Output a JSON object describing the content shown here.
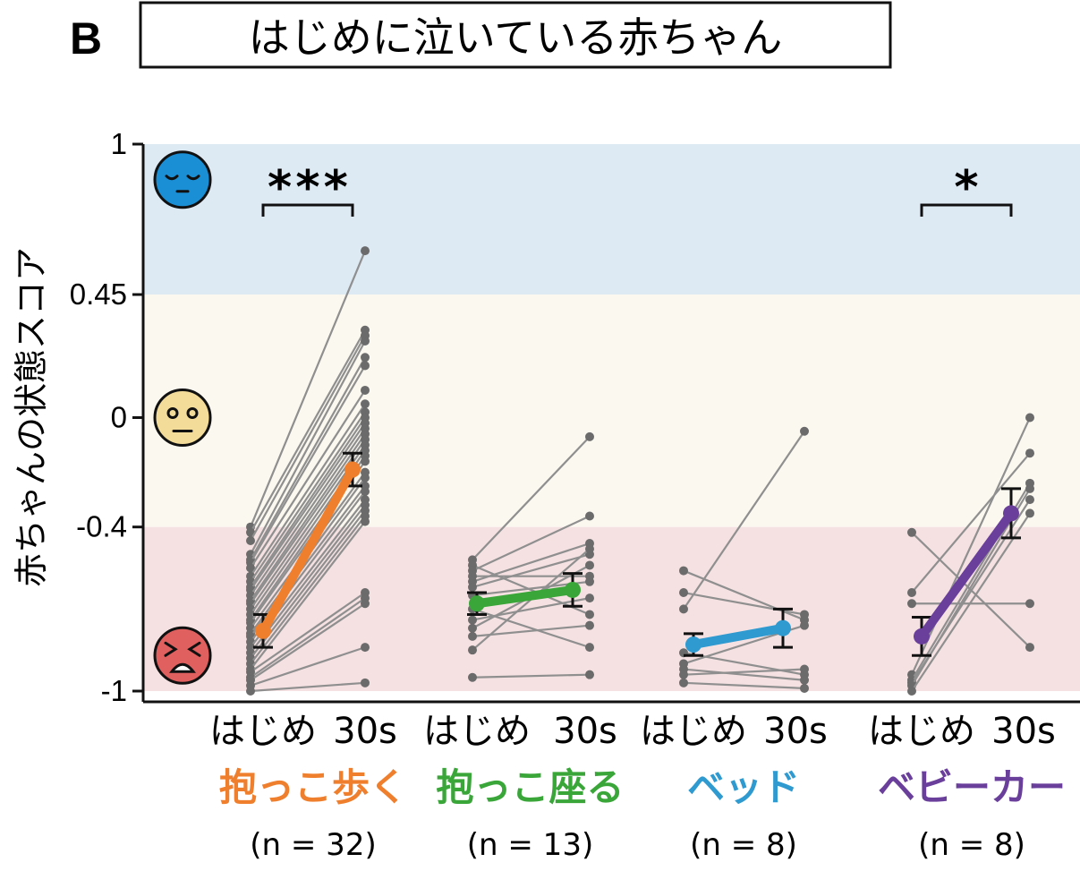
{
  "panel_label": "B",
  "colors": {
    "zone_calm": "#dde9f3",
    "zone_neutral": "#fbf8f0",
    "zone_crying": "#f5e1e2",
    "individual_line": "#8f8f8f",
    "individual_point": "#6b6b6b",
    "face_calm": "#1a8fd6",
    "face_neutral": "#f3dc9a",
    "face_crying": "#e0605f"
  },
  "faces": [
    {
      "name": "calm-face-icon",
      "score": 0.87,
      "color_key": "face_calm"
    },
    {
      "name": "neutral-face-icon",
      "score": 0.0,
      "color_key": "face_neutral"
    },
    {
      "name": "crying-face-icon",
      "score": -0.87,
      "color_key": "face_crying"
    }
  ],
  "chart_data": {
    "type": "line",
    "title": "はじめに泣いている赤ちゃん",
    "ylabel": "赤ちゃんの状態スコア",
    "ylim": [
      -1,
      1
    ],
    "yticks": [
      {
        "value": 1,
        "label": "1"
      },
      {
        "value": 0.45,
        "label": "0.45"
      },
      {
        "value": 0,
        "label": "0"
      },
      {
        "value": -0.4,
        "label": "-0.4"
      },
      {
        "value": -1,
        "label": "-1"
      }
    ],
    "zones": [
      {
        "from": 0.45,
        "to": 1,
        "state": "calm",
        "color_key": "zone_calm"
      },
      {
        "from": -0.4,
        "to": 0.45,
        "state": "neutral",
        "color_key": "zone_neutral"
      },
      {
        "from": -1,
        "to": -0.4,
        "state": "crying",
        "color_key": "zone_crying"
      }
    ],
    "condition_labels": [
      "はじめ",
      "30s"
    ],
    "groups": [
      {
        "name": "抱っこ歩く",
        "n_label": "(n = 32)",
        "color": "#ef7f2d",
        "mean": [
          -0.78,
          -0.19
        ],
        "sem": [
          0.06,
          0.06
        ],
        "significance": "***",
        "individuals": [
          [
            -0.4,
            0.61
          ],
          [
            -0.42,
            0.32
          ],
          [
            -0.45,
            0.3
          ],
          [
            -0.5,
            0.28
          ],
          [
            -0.52,
            0.22
          ],
          [
            -0.53,
            0.19
          ],
          [
            -0.55,
            0.1
          ],
          [
            -0.58,
            0.05
          ],
          [
            -0.6,
            0.02
          ],
          [
            -0.62,
            0.0
          ],
          [
            -0.63,
            -0.02
          ],
          [
            -0.65,
            -0.04
          ],
          [
            -0.67,
            -0.06
          ],
          [
            -0.68,
            -0.08
          ],
          [
            -0.7,
            -0.1
          ],
          [
            -0.72,
            -0.12
          ],
          [
            -0.74,
            -0.14
          ],
          [
            -0.75,
            -0.16
          ],
          [
            -0.77,
            -0.2
          ],
          [
            -0.79,
            -0.22
          ],
          [
            -0.8,
            -0.25
          ],
          [
            -0.82,
            -0.27
          ],
          [
            -0.84,
            -0.3
          ],
          [
            -0.86,
            -0.32
          ],
          [
            -0.88,
            -0.34
          ],
          [
            -0.9,
            -0.36
          ],
          [
            -0.92,
            -0.38
          ],
          [
            -0.93,
            -0.64
          ],
          [
            -0.95,
            -0.66
          ],
          [
            -0.96,
            -0.68
          ],
          [
            -0.98,
            -0.84
          ],
          [
            -1.0,
            -0.97
          ]
        ]
      },
      {
        "name": "抱っこ座る",
        "n_label": "(n = 13)",
        "color": "#3aa63a",
        "mean": [
          -0.68,
          -0.63
        ],
        "sem": [
          0.04,
          0.06
        ],
        "significance": "",
        "individuals": [
          [
            -0.52,
            -0.07
          ],
          [
            -0.54,
            -0.72
          ],
          [
            -0.56,
            -0.36
          ],
          [
            -0.58,
            -0.58
          ],
          [
            -0.6,
            -0.46
          ],
          [
            -0.62,
            -0.5
          ],
          [
            -0.65,
            -0.6
          ],
          [
            -0.7,
            -0.84
          ],
          [
            -0.74,
            -0.66
          ],
          [
            -0.77,
            -0.54
          ],
          [
            -0.8,
            -0.76
          ],
          [
            -0.85,
            -0.48
          ],
          [
            -0.95,
            -0.94
          ]
        ]
      },
      {
        "name": "ベッド",
        "n_label": "(n = 8)",
        "color": "#2e9ad0",
        "mean": [
          -0.83,
          -0.77
        ],
        "sem": [
          0.04,
          0.07
        ],
        "significance": "",
        "individuals": [
          [
            -0.56,
            -0.74
          ],
          [
            -0.64,
            -0.72
          ],
          [
            -0.7,
            -0.05
          ],
          [
            -0.86,
            -0.94
          ],
          [
            -0.9,
            -0.76
          ],
          [
            -0.92,
            -0.96
          ],
          [
            -0.94,
            -0.92
          ],
          [
            -0.97,
            -0.99
          ]
        ]
      },
      {
        "name": "ベビーカー",
        "n_label": "(n = 8)",
        "color": "#6a3f9c",
        "mean": [
          -0.8,
          -0.35
        ],
        "sem": [
          0.07,
          0.09
        ],
        "significance": "*",
        "individuals": [
          [
            -0.42,
            -0.84
          ],
          [
            -0.64,
            -0.13
          ],
          [
            -0.68,
            -0.68
          ],
          [
            -0.94,
            0.0
          ],
          [
            -0.96,
            -0.24
          ],
          [
            -0.97,
            -0.3
          ],
          [
            -0.98,
            -0.26
          ],
          [
            -1.0,
            -0.35
          ]
        ]
      }
    ]
  }
}
